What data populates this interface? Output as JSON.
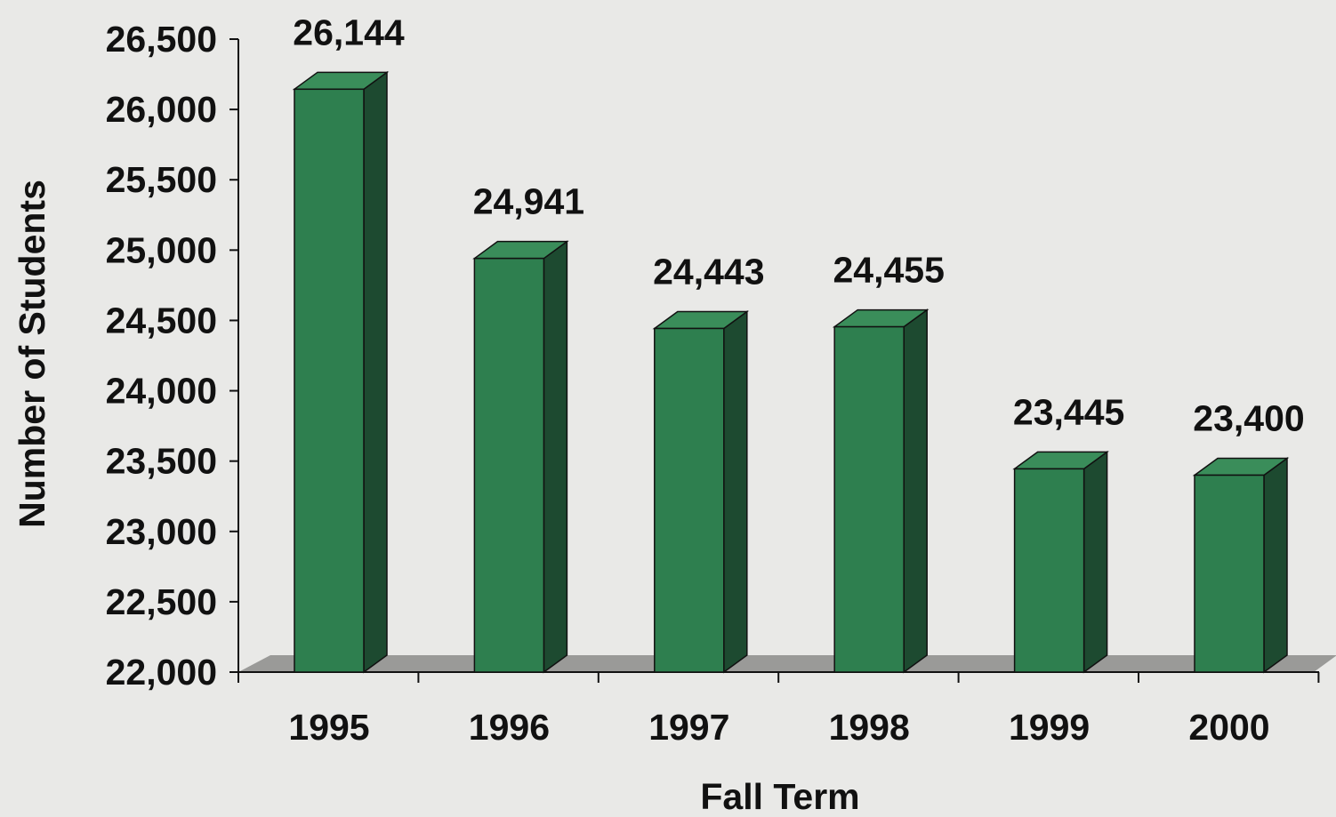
{
  "chart_data": {
    "type": "bar",
    "style": "3d-column",
    "categories": [
      "1995",
      "1996",
      "1997",
      "1998",
      "1999",
      "2000"
    ],
    "values": [
      26144,
      24941,
      24443,
      24455,
      23445,
      23400
    ],
    "data_labels": [
      "26,144",
      "24,941",
      "24,443",
      "24,455",
      "23,445",
      "23,400"
    ],
    "xlabel": "Fall Term",
    "ylabel": "Number of Students",
    "ylim": [
      22000,
      26500
    ],
    "yticks": [
      22000,
      22500,
      23000,
      23500,
      24000,
      24500,
      25000,
      25500,
      26000,
      26500
    ],
    "ytick_labels": [
      "22,000",
      "22,500",
      "23,000",
      "23,500",
      "24,000",
      "24,500",
      "25,000",
      "25,500",
      "26,000",
      "26,500"
    ],
    "grid": false,
    "legend": "none",
    "colors": {
      "bar_front": "#2e7f4f",
      "bar_top": "#3a8d5a",
      "bar_side": "#1d4a30",
      "floor": "#9a9a98",
      "background": "#e9e9e7",
      "text": "#111111"
    }
  }
}
